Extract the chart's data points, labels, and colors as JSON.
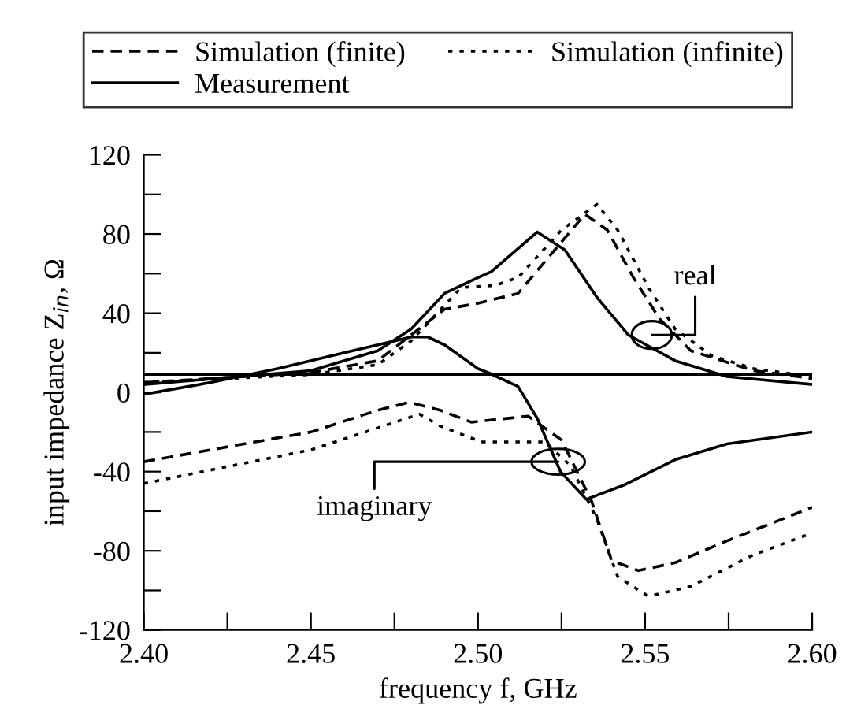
{
  "chart_data": {
    "type": "line",
    "xlabel": "frequency f, GHz",
    "ylabel": "input impedance Z$_{in}$, Ω",
    "legend": "top",
    "grid": false,
    "xlim": [
      2.4,
      2.6
    ],
    "ylim": [
      -120,
      120
    ],
    "xticks": [
      {
        "value": 2.4,
        "label": "2.40"
      },
      {
        "value": 2.425,
        "label": null
      },
      {
        "value": 2.45,
        "label": "2.45"
      },
      {
        "value": 2.475,
        "label": null
      },
      {
        "value": 2.5,
        "label": "2.50"
      },
      {
        "value": 2.525,
        "label": null
      },
      {
        "value": 2.55,
        "label": "2.55"
      },
      {
        "value": 2.575,
        "label": null
      },
      {
        "value": 2.6,
        "label": "2.60"
      }
    ],
    "yticks": [
      -120,
      {
        "value": -100,
        "label": null
      },
      -80,
      {
        "value": -60,
        "label": null
      },
      -40,
      {
        "value": -20,
        "label": null
      },
      0,
      {
        "value": 20,
        "label": null
      },
      40,
      {
        "value": 60,
        "label": null
      },
      80,
      {
        "value": 100,
        "label": null
      },
      120
    ],
    "ref_lines": [
      {
        "axis": "y",
        "value": 9,
        "color": "#000000"
      }
    ],
    "annotations": [
      {
        "text": "real",
        "x": 2.552,
        "y": 29
      },
      {
        "text": "imaginary",
        "x": 2.524,
        "y": -35
      }
    ],
    "series": [
      {
        "name": "Simulation (finite)",
        "color": "#000000",
        "line_style": "dashed",
        "x": [
          2.4,
          2.45,
          2.47,
          2.48,
          2.49,
          2.5,
          2.512,
          2.5215,
          2.532,
          2.5387,
          2.5465,
          2.5544,
          2.5637,
          2.5825,
          2.6
        ],
        "values": [
          5,
          10,
          16,
          29,
          42,
          45,
          50,
          69,
          90,
          82,
          58,
          37,
          21,
          11,
          7
        ]
      },
      {
        "name": "Simulation (infinite)",
        "color": "#000000",
        "line_style": "dotted",
        "x": [
          2.4,
          2.45,
          2.47,
          2.48,
          2.495,
          2.505,
          2.512,
          2.525,
          2.5356,
          2.5418,
          2.551,
          2.559,
          2.57,
          2.5825,
          2.6
        ],
        "values": [
          5,
          9,
          14,
          26,
          53,
          54,
          58,
          82,
          95,
          82,
          53,
          32,
          18.5,
          12,
          8
        ]
      },
      {
        "name": "Measurement",
        "color": "#000000",
        "line_style": "solid",
        "x": [
          2.4,
          2.45,
          2.47,
          2.48,
          2.49,
          2.5,
          2.504,
          2.5177,
          2.526,
          2.5356,
          2.545,
          2.559,
          2.5745,
          2.6
        ],
        "values": [
          4,
          11,
          21,
          32,
          50,
          58,
          61,
          81,
          72,
          48,
          29,
          16,
          8,
          4
        ]
      },
      {
        "color": "#000000",
        "line_style": "dashed",
        "x": [
          2.4,
          2.45,
          2.47,
          2.4794,
          2.4887,
          2.498,
          2.515,
          2.525,
          2.534,
          2.54,
          2.548,
          2.559,
          2.5745,
          2.6
        ],
        "values": [
          -35,
          -20,
          -9,
          -5,
          -9,
          -15,
          -12,
          -24,
          -55,
          -85,
          -90,
          -86,
          -75,
          -58
        ]
      },
      {
        "color": "#000000",
        "line_style": "dotted",
        "x": [
          2.4,
          2.45,
          2.4825,
          2.4887,
          2.501,
          2.52,
          2.5277,
          2.5356,
          2.5418,
          2.551,
          2.5637,
          2.5825,
          2.6
        ],
        "values": [
          -46,
          -29,
          -11,
          -17,
          -25,
          -25,
          -37,
          -64,
          -93,
          -103,
          -98,
          -82,
          -71
        ]
      },
      {
        "color": "#000000",
        "line_style": "solid",
        "x": [
          2.4,
          2.42,
          2.44,
          2.46,
          2.48,
          2.485,
          2.49,
          2.5,
          2.503,
          2.512,
          2.5177,
          2.5247,
          2.5324,
          2.5434,
          2.559,
          2.5745,
          2.6
        ],
        "values": [
          -1,
          5,
          12,
          20,
          28,
          28,
          24,
          12,
          10,
          3,
          -13,
          -40,
          -54,
          -47,
          -34,
          -26,
          -20
        ]
      }
    ]
  }
}
